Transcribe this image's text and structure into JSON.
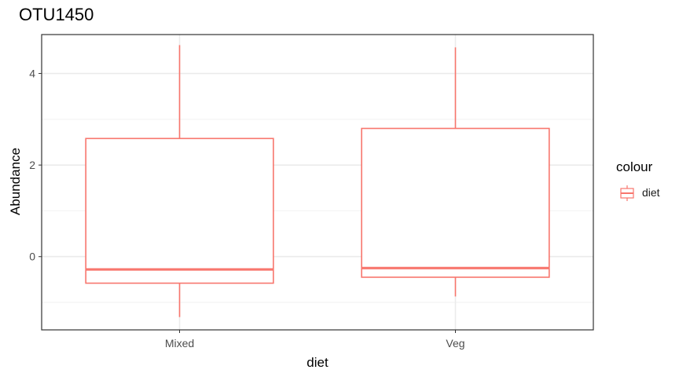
{
  "chart_data": {
    "type": "boxplot",
    "title": "OTU1450",
    "xlabel": "diet",
    "ylabel": "Abundance",
    "categories": [
      "Mixed",
      "Veg"
    ],
    "ylim": [
      -1.6,
      4.85
    ],
    "yticks": [
      0,
      2,
      4
    ],
    "ytick_labels": [
      "0",
      "2",
      "4"
    ],
    "boxes": [
      {
        "category": "Mixed",
        "min": -1.32,
        "q1": -0.58,
        "median": -0.28,
        "q3": 2.58,
        "max": 4.62
      },
      {
        "category": "Veg",
        "min": -0.87,
        "q1": -0.45,
        "median": -0.25,
        "q3": 2.8,
        "max": 4.57
      }
    ],
    "color": "#F8766D",
    "grid": true,
    "legend": {
      "title": "colour",
      "entries": [
        "diet"
      ],
      "position": "right"
    }
  }
}
